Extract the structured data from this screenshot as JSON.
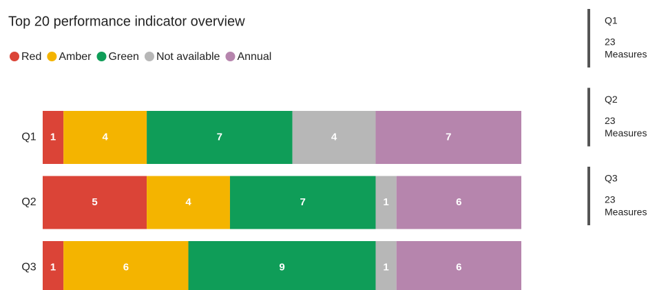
{
  "chart_data": {
    "type": "stacked-bar",
    "orientation": "horizontal",
    "title": "Top 20 performance indicator overview",
    "categories": [
      "Q1",
      "Q2",
      "Q3"
    ],
    "series": [
      {
        "name": "Red",
        "color": "#db4437",
        "values": [
          1,
          5,
          1
        ]
      },
      {
        "name": "Amber",
        "color": "#f4b400",
        "values": [
          4,
          4,
          6
        ]
      },
      {
        "name": "Green",
        "color": "#0f9d58",
        "values": [
          7,
          7,
          9
        ]
      },
      {
        "name": "Not available",
        "color": "#b7b7b7",
        "values": [
          4,
          1,
          1
        ]
      },
      {
        "name": "Annual",
        "color": "#b685ad",
        "values": [
          7,
          6,
          6
        ]
      }
    ],
    "xlim": [
      0,
      23
    ]
  },
  "cards": [
    {
      "label": "Q1",
      "value": 23,
      "unit": "Measures"
    },
    {
      "label": "Q2",
      "value": 23,
      "unit": "Measures"
    },
    {
      "label": "Q3",
      "value": 23,
      "unit": "Measures"
    }
  ]
}
